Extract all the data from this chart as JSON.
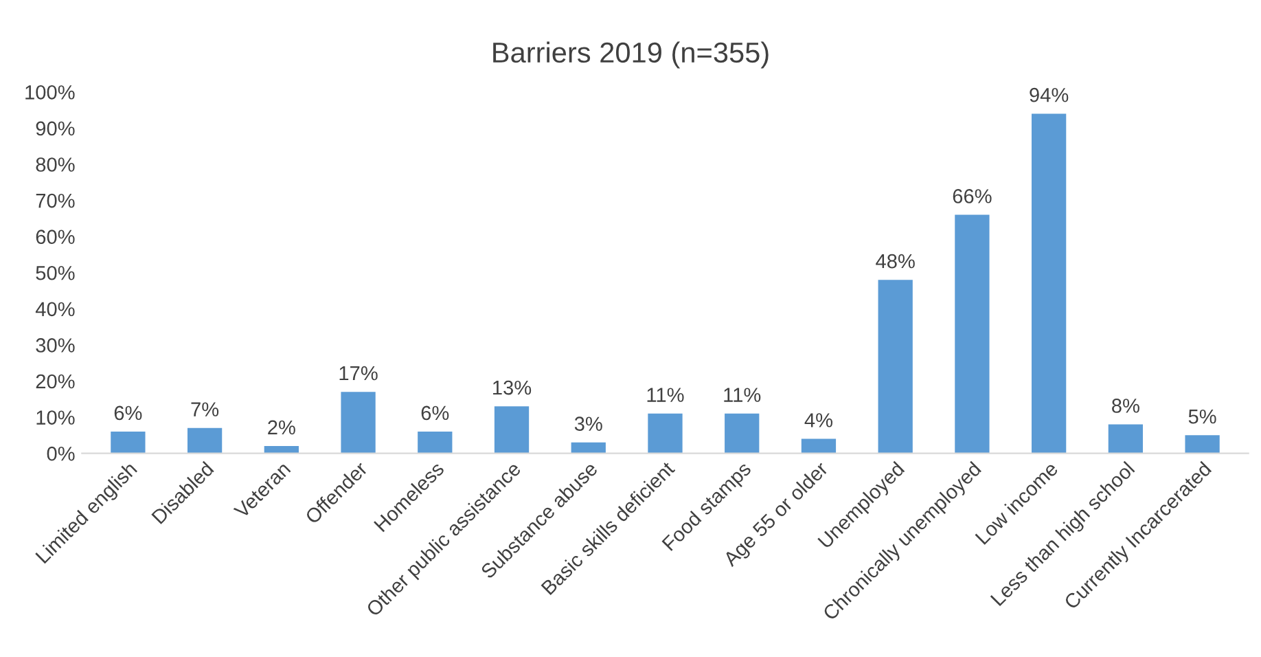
{
  "chart_data": {
    "type": "bar",
    "title": "Barriers 2019 (n=355)",
    "categories": [
      "Limited english",
      "Disabled",
      "Veteran",
      "Offender",
      "Homeless",
      "Other public assistance",
      "Substance abuse",
      "Basic skills deficient",
      "Food stamps",
      "Age 55 or older",
      "Unemployed",
      "Chronically unemployed",
      "Low income",
      "Less than high school",
      "Currently Incarcerated"
    ],
    "values": [
      6,
      7,
      2,
      17,
      6,
      13,
      3,
      11,
      11,
      4,
      48,
      66,
      94,
      8,
      5
    ],
    "value_labels": [
      "6%",
      "7%",
      "2%",
      "17%",
      "6%",
      "13%",
      "3%",
      "11%",
      "11%",
      "4%",
      "48%",
      "66%",
      "94%",
      "8%",
      "5%"
    ],
    "color": "#5b9bd5",
    "ylim": [
      0,
      100
    ],
    "yticks": [
      {
        "value": 0,
        "label": "0%"
      },
      {
        "value": 10,
        "label": "10%"
      },
      {
        "value": 20,
        "label": "20%"
      },
      {
        "value": 30,
        "label": "30%"
      },
      {
        "value": 40,
        "label": "40%"
      },
      {
        "value": 50,
        "label": "50%"
      },
      {
        "value": 60,
        "label": "60%"
      },
      {
        "value": 70,
        "label": "70%"
      },
      {
        "value": 80,
        "label": "80%"
      },
      {
        "value": 90,
        "label": "90%"
      },
      {
        "value": 100,
        "label": "100%"
      }
    ],
    "grid": false
  }
}
